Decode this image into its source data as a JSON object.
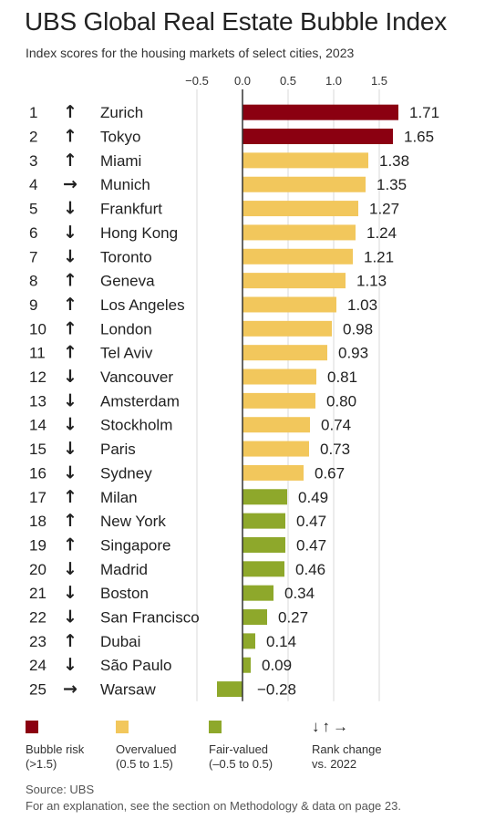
{
  "title": "UBS Global Real Estate Bubble Index",
  "subtitle": "Index scores for the housing markets of select cities, 2023",
  "colors": {
    "bubble": "#8b0011",
    "overvalued": "#f2c75c",
    "fair": "#8ea82b"
  },
  "chart_data": {
    "type": "bar",
    "orientation": "horizontal",
    "title": "UBS Global Real Estate Bubble Index",
    "subtitle": "Index scores for the housing markets of select cities, 2023",
    "x_ticks": [
      "−0.5",
      "0.0",
      "0.5",
      "1.0",
      "1.5"
    ],
    "x_tick_values": [
      -0.5,
      0.0,
      0.5,
      1.0,
      1.5
    ],
    "xlim": [
      -0.5,
      1.75
    ],
    "grid": "vertical",
    "categories": [
      "Zurich",
      "Tokyo",
      "Miami",
      "Munich",
      "Frankfurt",
      "Hong Kong",
      "Toronto",
      "Geneva",
      "Los Angeles",
      "London",
      "Tel Aviv",
      "Vancouver",
      "Amsterdam",
      "Stockholm",
      "Paris",
      "Sydney",
      "Milan",
      "New York",
      "Singapore",
      "Madrid",
      "Boston",
      "San Francisco",
      "Dubai",
      "São Paulo",
      "Warsaw"
    ],
    "ranks": [
      "1",
      "2",
      "3",
      "4",
      "5",
      "6",
      "7",
      "8",
      "9",
      "10",
      "11",
      "12",
      "13",
      "14",
      "15",
      "16",
      "17",
      "18",
      "19",
      "20",
      "21",
      "22",
      "23",
      "24",
      "25"
    ],
    "values": [
      1.71,
      1.65,
      1.38,
      1.35,
      1.27,
      1.24,
      1.21,
      1.13,
      1.03,
      0.98,
      0.93,
      0.81,
      0.8,
      0.74,
      0.73,
      0.67,
      0.49,
      0.47,
      0.47,
      0.46,
      0.34,
      0.27,
      0.14,
      0.09,
      -0.28
    ],
    "value_labels": [
      "1.71",
      "1.65",
      "1.38",
      "1.35",
      "1.27",
      "1.24",
      "1.21",
      "1.13",
      "1.03",
      "0.98",
      "0.93",
      "0.81",
      "0.80",
      "0.74",
      "0.73",
      "0.67",
      "0.49",
      "0.47",
      "0.47",
      "0.46",
      "0.34",
      "0.27",
      "0.14",
      "0.09",
      "−0.28"
    ],
    "rank_change": [
      "up",
      "up",
      "up",
      "right",
      "down",
      "down",
      "down",
      "up",
      "up",
      "up",
      "up",
      "down",
      "down",
      "down",
      "down",
      "down",
      "up",
      "up",
      "up",
      "down",
      "down",
      "down",
      "up",
      "down",
      "right"
    ],
    "category_class": [
      "bubble",
      "bubble",
      "overvalued",
      "overvalued",
      "overvalued",
      "overvalued",
      "overvalued",
      "overvalued",
      "overvalued",
      "overvalued",
      "overvalued",
      "overvalued",
      "overvalued",
      "overvalued",
      "overvalued",
      "overvalued",
      "fair",
      "fair",
      "fair",
      "fair",
      "fair",
      "fair",
      "fair",
      "fair",
      "fair"
    ]
  },
  "legend": {
    "bubble_line1": "Bubble risk",
    "bubble_line2": "(>1.5)",
    "over_line1": "Overvalued",
    "over_line2": "(0.5 to 1.5)",
    "fair_line1": "Fair-valued",
    "fair_line2": "(–0.5 to 0.5)",
    "arrows": "↓↑→",
    "rank_line1": "Rank change",
    "rank_line2": "vs. 2022"
  },
  "source": {
    "line1": "Source: UBS",
    "line2": "For an explanation, see the section on Methodology & data on page 23."
  }
}
